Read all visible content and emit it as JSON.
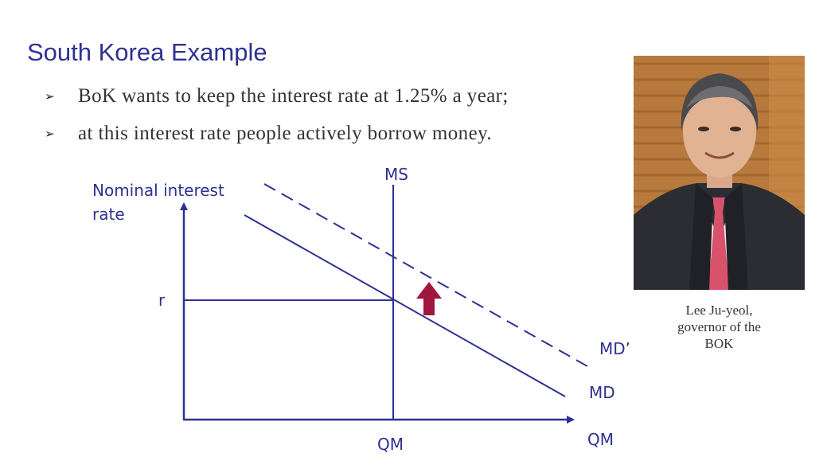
{
  "slide": {
    "title": "South Korea Example",
    "bullets": [
      "BoK wants to keep the interest rate at 1.25% a year;",
      "at this interest rate people actively borrow money."
    ],
    "bullet_marker": "➢"
  },
  "diagram": {
    "y_axis_label_line1": "Nominal interest",
    "y_axis_label_line2": "rate",
    "x_axis_label": "QM",
    "r_label": "r",
    "qm_label": "QM",
    "ms_label": "MS",
    "md_label": "MD",
    "md_prime_label": "MD’",
    "line_color": "#2e3192",
    "arrow_color": "#a0163e"
  },
  "photo": {
    "caption_lines": [
      "Lee Ju-yeol,",
      "governor of the",
      "BOK"
    ],
    "suit_color": "#2b2d33",
    "tie_color": "#d9526b",
    "background_color": "#b87a3c"
  }
}
